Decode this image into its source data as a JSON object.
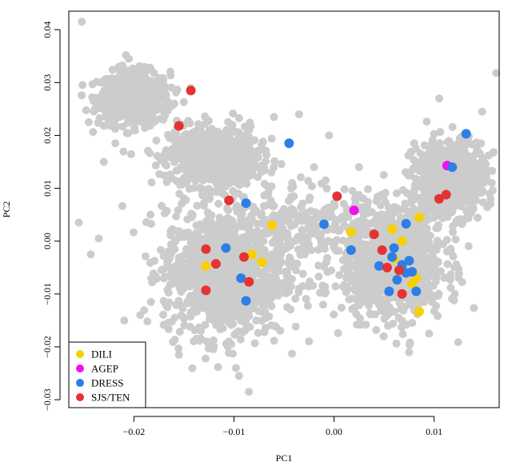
{
  "chart_data": {
    "type": "scatter",
    "xlabel": "PC1",
    "ylabel": "PC2",
    "xlim": [
      -0.0265,
      0.0165
    ],
    "ylim": [
      -0.0315,
      0.0435
    ],
    "x_ticks": [
      -0.02,
      -0.01,
      0.0,
      0.01
    ],
    "x_tick_labels": [
      "−0.02",
      "−0.01",
      "0.00",
      "0.01"
    ],
    "y_ticks": [
      -0.03,
      -0.02,
      -0.01,
      0.0,
      0.01,
      0.02,
      0.03,
      0.04
    ],
    "y_tick_labels": [
      "−0.03",
      "−0.02",
      "−0.01",
      "0.00",
      "0.01",
      "0.02",
      "0.03",
      "0.04"
    ],
    "grid": false,
    "legend_position": "bottom-left",
    "background_color": "#cccccc",
    "background_clusters": [
      {
        "cx": -0.02,
        "cy": 0.027,
        "sx": 0.0018,
        "sy": 0.0025,
        "n": 600
      },
      {
        "cx": -0.012,
        "cy": 0.016,
        "sx": 0.0022,
        "sy": 0.0028,
        "n": 700
      },
      {
        "cx": -0.011,
        "cy": -0.006,
        "sx": 0.003,
        "sy": 0.006,
        "n": 1100
      },
      {
        "cx": 0.006,
        "cy": -0.004,
        "sx": 0.0025,
        "sy": 0.005,
        "n": 1000
      },
      {
        "cx": 0.0115,
        "cy": 0.012,
        "sx": 0.0018,
        "sy": 0.0035,
        "n": 700
      },
      {
        "cx": -0.003,
        "cy": 0.002,
        "sx": 0.004,
        "sy": 0.0045,
        "n": 250
      }
    ],
    "background_outliers": [
      [
        -0.0252,
        0.0415
      ],
      [
        -0.0255,
        0.0035
      ],
      [
        -0.0243,
        -0.0025
      ],
      [
        -0.0245,
        0.0225
      ],
      [
        0.0162,
        0.0318
      ],
      [
        0.0148,
        0.0245
      ],
      [
        0.0105,
        0.027
      ],
      [
        -0.0085,
        -0.0285
      ],
      [
        -0.0095,
        -0.0255
      ],
      [
        -0.0098,
        -0.024
      ],
      [
        -0.006,
        0.0235
      ],
      [
        -0.002,
        0.014
      ],
      [
        -0.0035,
        0.024
      ],
      [
        -0.0005,
        0.02
      ],
      [
        0.008,
        0.0185
      ],
      [
        0.0025,
        0.014
      ],
      [
        -0.0155,
        -0.0215
      ],
      [
        -0.0133,
        -0.017
      ],
      [
        0.0075,
        -0.021
      ],
      [
        0.0095,
        -0.0175
      ],
      [
        -0.0235,
        0.0005
      ],
      [
        -0.023,
        0.015
      ],
      [
        -0.0215,
        0.033
      ],
      [
        -0.0205,
        0.0345
      ]
    ],
    "series": [
      {
        "name": "DILI",
        "color": "#f8d000",
        "points": [
          [
            -0.0128,
            -0.0047
          ],
          [
            -0.0082,
            -0.0025
          ],
          [
            -0.0072,
            -0.004
          ],
          [
            -0.0062,
            0.003
          ],
          [
            0.0017,
            0.0017
          ],
          [
            0.0058,
            0.0023
          ],
          [
            0.006,
            -0.0033
          ],
          [
            0.0068,
            0.0
          ],
          [
            0.0078,
            -0.008
          ],
          [
            0.0082,
            -0.007
          ],
          [
            0.0085,
            0.0045
          ],
          [
            0.0085,
            -0.0133
          ]
        ]
      },
      {
        "name": "AGEP",
        "color": "#ee12ee",
        "points": [
          [
            0.002,
            0.0058
          ],
          [
            0.0113,
            0.0143
          ]
        ]
      },
      {
        "name": "DRESS",
        "color": "#2d7fe6",
        "points": [
          [
            -0.0108,
            -0.0013
          ],
          [
            -0.0093,
            -0.007
          ],
          [
            -0.0088,
            0.0072
          ],
          [
            -0.0088,
            -0.0113
          ],
          [
            -0.0045,
            0.0185
          ],
          [
            -0.001,
            0.0032
          ],
          [
            0.0017,
            -0.0017
          ],
          [
            0.0045,
            -0.0047
          ],
          [
            0.0055,
            -0.0095
          ],
          [
            0.0058,
            -0.003
          ],
          [
            0.006,
            -0.0013
          ],
          [
            0.0063,
            -0.0073
          ],
          [
            0.0068,
            -0.0045
          ],
          [
            0.0072,
            -0.006
          ],
          [
            0.0072,
            0.0033
          ],
          [
            0.0075,
            -0.0037
          ],
          [
            0.0078,
            -0.0058
          ],
          [
            0.0082,
            -0.0095
          ],
          [
            0.0118,
            0.014
          ],
          [
            0.0132,
            0.0203
          ]
        ]
      },
      {
        "name": "SJS/TEN",
        "color": "#e63232",
        "points": [
          [
            -0.0143,
            0.0285
          ],
          [
            -0.0155,
            0.0218
          ],
          [
            -0.0105,
            0.0077
          ],
          [
            -0.0128,
            -0.0015
          ],
          [
            -0.0118,
            -0.0043
          ],
          [
            -0.009,
            -0.003
          ],
          [
            -0.0085,
            -0.0077
          ],
          [
            -0.0128,
            -0.0093
          ],
          [
            0.0003,
            0.0085
          ],
          [
            0.004,
            0.0013
          ],
          [
            0.0048,
            -0.0017
          ],
          [
            0.0053,
            -0.005
          ],
          [
            0.0065,
            -0.0055
          ],
          [
            0.0068,
            -0.01
          ],
          [
            0.0105,
            0.008
          ],
          [
            0.0112,
            0.0088
          ]
        ]
      }
    ]
  }
}
